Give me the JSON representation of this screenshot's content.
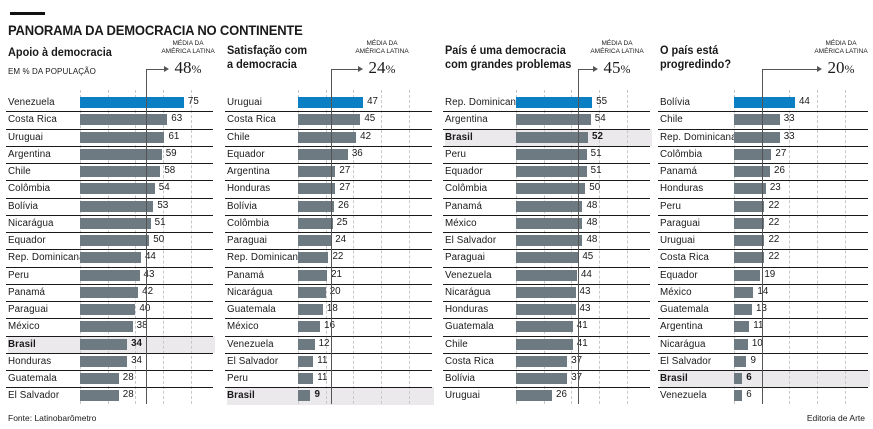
{
  "header": {
    "title": "PANORAMA DA DEMOCRACIA NO CONTINENTE"
  },
  "colors": {
    "highlight_bar": "#0b7fc4",
    "bar": "#6e7a82",
    "brasil_row_bg": "#ece9ed"
  },
  "chart_data": [
    {
      "type": "bar",
      "orientation": "horizontal",
      "title_lines": [
        "Apoio à democracia"
      ],
      "subtitle": "EM % DA POPULAÇÃO",
      "average_caption": [
        "MÉDIA DA",
        "AMÉRICA LATINA"
      ],
      "average": 48,
      "average_display": "48",
      "unit": "%",
      "xlim": [
        0,
        80
      ],
      "grid": [
        0,
        20,
        40,
        60,
        80
      ],
      "highlighted_category": "Brasil",
      "categories": [
        "Venezuela",
        "Costa Rica",
        "Uruguai",
        "Argentina",
        "Chile",
        "Colômbia",
        "Bolívia",
        "Nicarágua",
        "Equador",
        "Rep. Dominicana",
        "Peru",
        "Panamá",
        "Paraguai",
        "México",
        "Brasil",
        "Honduras",
        "Guatemala",
        "El Salvador"
      ],
      "values": [
        75,
        63,
        61,
        59,
        58,
        54,
        53,
        51,
        50,
        44,
        43,
        42,
        40,
        38,
        34,
        34,
        28,
        28
      ]
    },
    {
      "type": "bar",
      "orientation": "horizontal",
      "title_lines": [
        "Satisfação com",
        "a democracia"
      ],
      "subtitle": "",
      "average_caption": [
        "MÉDIA DA",
        "AMÉRICA LATINA"
      ],
      "average": 24,
      "average_display": "24",
      "unit": "%",
      "xlim": [
        0,
        80
      ],
      "grid": [
        0,
        20,
        40,
        60,
        80
      ],
      "highlighted_category": "Brasil",
      "categories": [
        "Uruguai",
        "Costa Rica",
        "Chile",
        "Equador",
        "Argentina",
        "Honduras",
        "Bolívia",
        "Colômbia",
        "Paraguai",
        "Rep. Dominicana",
        "Panamá",
        "Nicarágua",
        "Guatemala",
        "México",
        "Venezuela",
        "El Salvador",
        "Peru",
        "Brasil"
      ],
      "values": [
        47,
        45,
        42,
        36,
        27,
        27,
        26,
        25,
        24,
        22,
        21,
        20,
        18,
        16,
        12,
        11,
        11,
        9
      ]
    },
    {
      "type": "bar",
      "orientation": "horizontal",
      "title_lines": [
        "País é uma democracia",
        "com grandes problemas"
      ],
      "subtitle": "",
      "average_caption": [
        "MÉDIA DA",
        "AMÉRICA LATINA"
      ],
      "average": 45,
      "average_display": "45",
      "unit": "%",
      "xlim": [
        0,
        80
      ],
      "grid": [
        0,
        20,
        40,
        60,
        80
      ],
      "highlighted_category": "Brasil",
      "categories": [
        "Rep. Dominicana",
        "Argentina",
        "Brasil",
        "Peru",
        "Equador",
        "Colômbia",
        "Panamá",
        "México",
        "El Salvador",
        "Paraguai",
        "Venezuela",
        "Nicarágua",
        "Honduras",
        "Guatemala",
        "Chile",
        "Costa Rica",
        "Bolívia",
        "Uruguai"
      ],
      "values": [
        55,
        54,
        52,
        51,
        51,
        50,
        48,
        48,
        48,
        45,
        44,
        43,
        43,
        41,
        41,
        37,
        37,
        26
      ]
    },
    {
      "type": "bar",
      "orientation": "horizontal",
      "title_lines": [
        "O país está",
        "progredindo?"
      ],
      "subtitle": "",
      "average_caption": [
        "MÉDIA DA",
        "AMÉRICA LATINA"
      ],
      "average": 20,
      "average_display": "20",
      "unit": "%",
      "xlim": [
        0,
        80
      ],
      "grid": [
        0,
        20,
        40,
        60,
        80
      ],
      "highlighted_category": "Brasil",
      "categories": [
        "Bolívia",
        "Chile",
        "Rep. Dominicana",
        "Colômbia",
        "Panamá",
        "Honduras",
        "Peru",
        "Paraguai",
        "Uruguai",
        "Costa Rica",
        "Equador",
        "México",
        "Guatemala",
        "Argentina",
        "Nicarágua",
        "El Salvador",
        "Brasil",
        "Venezuela"
      ],
      "values": [
        44,
        33,
        33,
        27,
        26,
        23,
        22,
        22,
        22,
        22,
        19,
        14,
        13,
        11,
        10,
        9,
        6,
        6
      ]
    }
  ],
  "footer": {
    "source": "Fonte: Latinobarômetro",
    "credit": "Editoria de Arte"
  }
}
